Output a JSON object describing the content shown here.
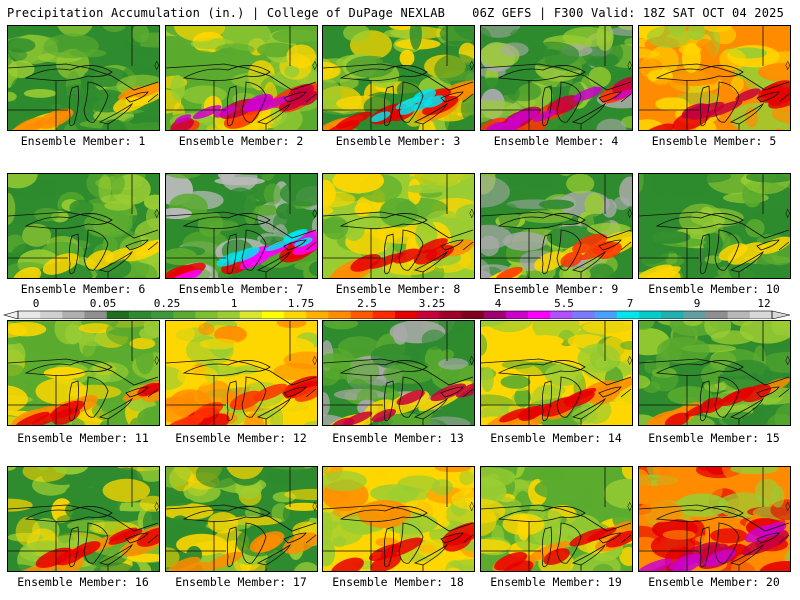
{
  "header": {
    "left": "Precipitation Accumulation (in.) | College of DuPage NEXLAB",
    "right": "06Z GEFS | F300 Valid: 18Z SAT OCT 04 2025"
  },
  "caption_prefix": "Ensemble Member: ",
  "members": [
    {
      "label": "Ensemble Member: 1",
      "palette": [
        "#2e8b2e",
        "#5aab2e",
        "#9acd32"
      ],
      "hot": [
        "#ffd700",
        "#ff8c00"
      ]
    },
    {
      "label": "Ensemble Member: 2",
      "palette": [
        "#5aab2e",
        "#9acd32",
        "#ffd700"
      ],
      "hot": [
        "#ff3300",
        "#c8003c",
        "#cc00cc"
      ]
    },
    {
      "label": "Ensemble Member: 3",
      "palette": [
        "#2e8b2e",
        "#9acd32",
        "#ffd700"
      ],
      "hot": [
        "#ff8c00",
        "#e60000",
        "#00e5ee"
      ]
    },
    {
      "label": "Ensemble Member: 4",
      "palette": [
        "#2e8b2e",
        "#aaaaaa",
        "#9acd32"
      ],
      "hot": [
        "#ff3300",
        "#c8003c",
        "#cc00cc"
      ]
    },
    {
      "label": "Ensemble Member: 5",
      "palette": [
        "#ff8c00",
        "#ffd700",
        "#9acd32"
      ],
      "hot": [
        "#e60000",
        "#c8003c"
      ]
    },
    {
      "label": "Ensemble Member: 6",
      "palette": [
        "#2e8b2e",
        "#5aab2e",
        "#9acd32"
      ],
      "hot": [
        "#ffd700"
      ]
    },
    {
      "label": "Ensemble Member: 7",
      "palette": [
        "#2e8b2e",
        "#bbbbbb",
        "#5aab2e"
      ],
      "hot": [
        "#e60000",
        "#ff00ff",
        "#00e5ee"
      ]
    },
    {
      "label": "Ensemble Member: 8",
      "palette": [
        "#9acd32",
        "#ffd700",
        "#5aab2e"
      ],
      "hot": [
        "#ff8c00",
        "#e60000"
      ]
    },
    {
      "label": "Ensemble Member: 9",
      "palette": [
        "#2e8b2e",
        "#9acd32",
        "#aaaaaa"
      ],
      "hot": [
        "#ffd700",
        "#ff3300"
      ]
    },
    {
      "label": "Ensemble Member: 10",
      "palette": [
        "#2e8b2e",
        "#5aab2e",
        "#9acd32"
      ],
      "hot": [
        "#ffd700"
      ]
    },
    {
      "label": "Ensemble Member: 11",
      "palette": [
        "#5aab2e",
        "#9acd32",
        "#ffd700"
      ],
      "hot": [
        "#ff8c00",
        "#e60000"
      ]
    },
    {
      "label": "Ensemble Member: 12",
      "palette": [
        "#ffd700",
        "#ff8c00",
        "#9acd32"
      ],
      "hot": [
        "#e60000",
        "#ff3300"
      ]
    },
    {
      "label": "Ensemble Member: 13",
      "palette": [
        "#2e8b2e",
        "#5aab2e",
        "#aaaaaa"
      ],
      "hot": [
        "#ffd700",
        "#c8003c"
      ]
    },
    {
      "label": "Ensemble Member: 14",
      "palette": [
        "#ffd700",
        "#9acd32",
        "#5aab2e"
      ],
      "hot": [
        "#ff8c00",
        "#e60000"
      ]
    },
    {
      "label": "Ensemble Member: 15",
      "palette": [
        "#2e8b2e",
        "#5aab2e",
        "#9acd32"
      ],
      "hot": [
        "#ff8c00",
        "#e60000"
      ]
    },
    {
      "label": "Ensemble Member: 16",
      "palette": [
        "#2e8b2e",
        "#9acd32",
        "#ffd700"
      ],
      "hot": [
        "#ff8c00",
        "#e60000"
      ]
    },
    {
      "label": "Ensemble Member: 17",
      "palette": [
        "#2e8b2e",
        "#9acd32",
        "#ffd700"
      ],
      "hot": [
        "#ff8c00"
      ]
    },
    {
      "label": "Ensemble Member: 18",
      "palette": [
        "#ffd700",
        "#9acd32",
        "#ff8c00"
      ],
      "hot": [
        "#e60000"
      ]
    },
    {
      "label": "Ensemble Member: 19",
      "palette": [
        "#5aab2e",
        "#9acd32",
        "#ffd700"
      ],
      "hot": [
        "#ff8c00",
        "#e60000"
      ]
    },
    {
      "label": "Ensemble Member: 20",
      "palette": [
        "#ff8c00",
        "#e60000",
        "#9acd32"
      ],
      "hot": [
        "#c8003c",
        "#cc00cc"
      ]
    }
  ],
  "colorbar": {
    "tick_labels": [
      "0",
      "0.05",
      "0.25",
      "1",
      "1.75",
      "2.5",
      "3.25",
      "4",
      "5.5",
      "7",
      "9",
      "12"
    ],
    "colors": [
      "#e8e8e8",
      "#d0d0d0",
      "#b0b0b0",
      "#909090",
      "#1e6e1e",
      "#2e8b2e",
      "#3c9a3c",
      "#5aab2e",
      "#7dbf2e",
      "#9acd32",
      "#d8e62e",
      "#ffff00",
      "#ffd700",
      "#ffb000",
      "#ff8c00",
      "#ff5a00",
      "#ff2a00",
      "#e60000",
      "#c8003c",
      "#a00028",
      "#800020",
      "#a0006e",
      "#cc00cc",
      "#ff00ff",
      "#b050ff",
      "#7a7aff",
      "#4aa0ff",
      "#00e5ee",
      "#00cccc",
      "#20b0b0",
      "#60a0a0",
      "#909090",
      "#b8b8b8",
      "#d8d8d8"
    ]
  }
}
